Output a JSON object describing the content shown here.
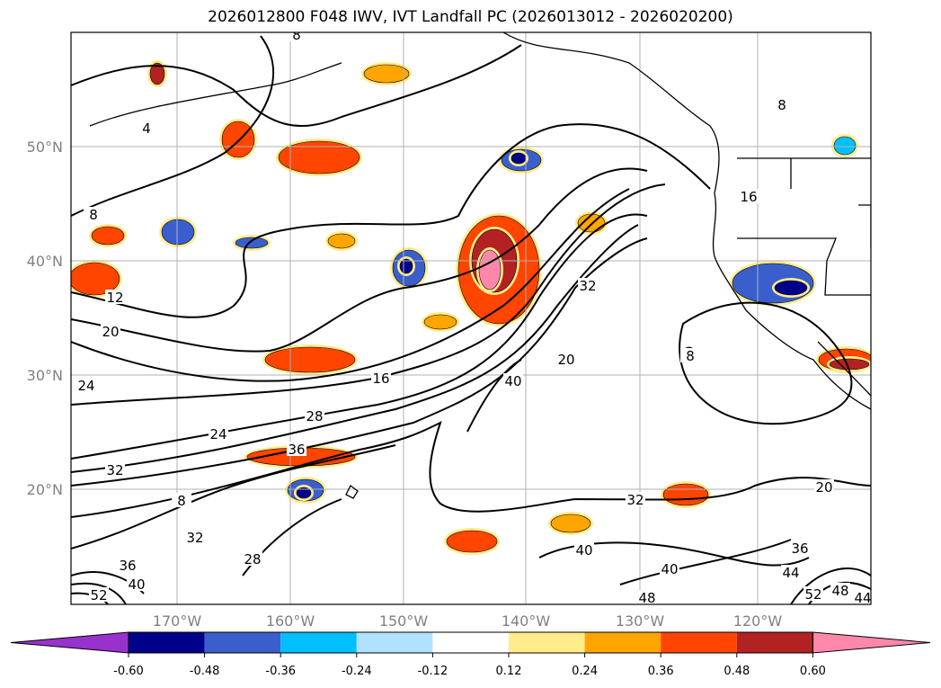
{
  "title": "2026012800 F048 IWV, IVT Landfall PC (2026013012 - 2026020200)",
  "axes": {
    "lon_labels": [
      "170°W",
      "160°W",
      "150°W",
      "140°W",
      "130°W",
      "120°W"
    ],
    "lat_labels": [
      "50°N",
      "40°N",
      "30°N",
      "20°N"
    ]
  },
  "colorbar": {
    "under_color": "#9932cc",
    "over_color": "#ff88aa",
    "colors": [
      "#00008b",
      "#3a5fcd",
      "#00bfff",
      "#b0e2ff",
      "#ffffff",
      "#ffec8b",
      "#ffa500",
      "#ff4500",
      "#b22222"
    ],
    "ticks": [
      "-0.60",
      "-0.48",
      "-0.36",
      "-0.24",
      "-0.12",
      "0.12",
      "0.24",
      "0.36",
      "0.48",
      "0.60"
    ]
  },
  "contour_labels": [
    "8",
    "4",
    "8",
    "8",
    "12",
    "20",
    "24",
    "16",
    "28",
    "24",
    "36",
    "32",
    "40",
    "20",
    "32",
    "8",
    "16",
    "8",
    "20",
    "32",
    "40",
    "40",
    "36",
    "28",
    "32",
    "36",
    "44",
    "40",
    "52",
    "48",
    "44",
    "52",
    "48"
  ]
}
